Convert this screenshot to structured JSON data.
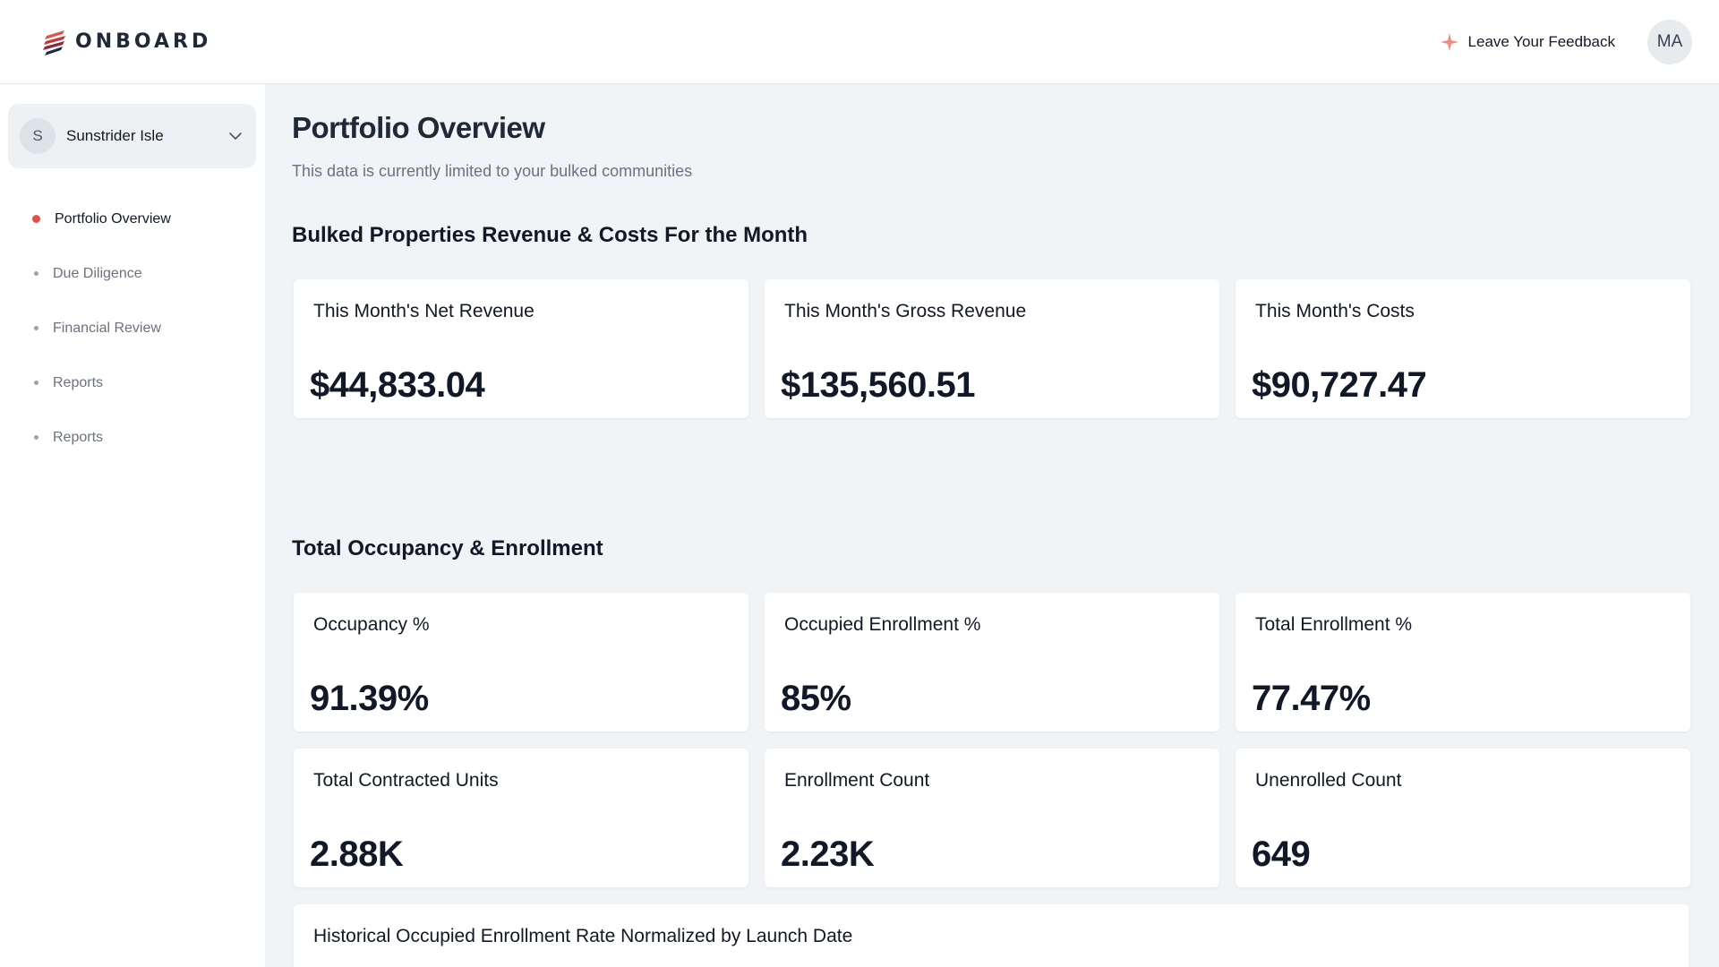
{
  "header": {
    "brand": "ONBOARD",
    "feedback_label": "Leave Your Feedback",
    "avatar_initials": "MA"
  },
  "sidebar": {
    "community": {
      "initial": "S",
      "name": "Sunstrider Isle"
    },
    "items": [
      {
        "label": "Portfolio Overview",
        "active": true
      },
      {
        "label": "Due Diligence",
        "active": false
      },
      {
        "label": "Financial Review",
        "active": false
      },
      {
        "label": "Reports",
        "active": false
      },
      {
        "label": "Reports",
        "active": false
      }
    ]
  },
  "main": {
    "title": "Portfolio Overview",
    "subtitle": "This data is currently limited to your bulked communities",
    "revenue_section": {
      "title": "Bulked Properties Revenue & Costs For the Month",
      "cards": [
        {
          "label": "This Month's Net Revenue",
          "value": "$44,833.04"
        },
        {
          "label": "This Month's Gross Revenue",
          "value": "$135,560.51"
        },
        {
          "label": "This Month's Costs",
          "value": "$90,727.47"
        }
      ]
    },
    "occupancy_section": {
      "title": "Total Occupancy & Enrollment",
      "cards": [
        {
          "label": "Occupancy %",
          "value": "91.39%"
        },
        {
          "label": "Occupied Enrollment %",
          "value": "85%"
        },
        {
          "label": "Total Enrollment %",
          "value": "77.47%"
        },
        {
          "label": "Total Contracted Units",
          "value": "2.88K"
        },
        {
          "label": "Enrollment Count",
          "value": "2.23K"
        },
        {
          "label": "Unenrolled Count",
          "value": "649"
        }
      ]
    },
    "historical_card": {
      "title": "Historical Occupied Enrollment Rate Normalized by Launch Date"
    }
  },
  "colors": {
    "accent": "#e3504b",
    "background": "#f1f4f7",
    "card": "#ffffff",
    "text": "#111827",
    "muted": "#6b7280"
  }
}
